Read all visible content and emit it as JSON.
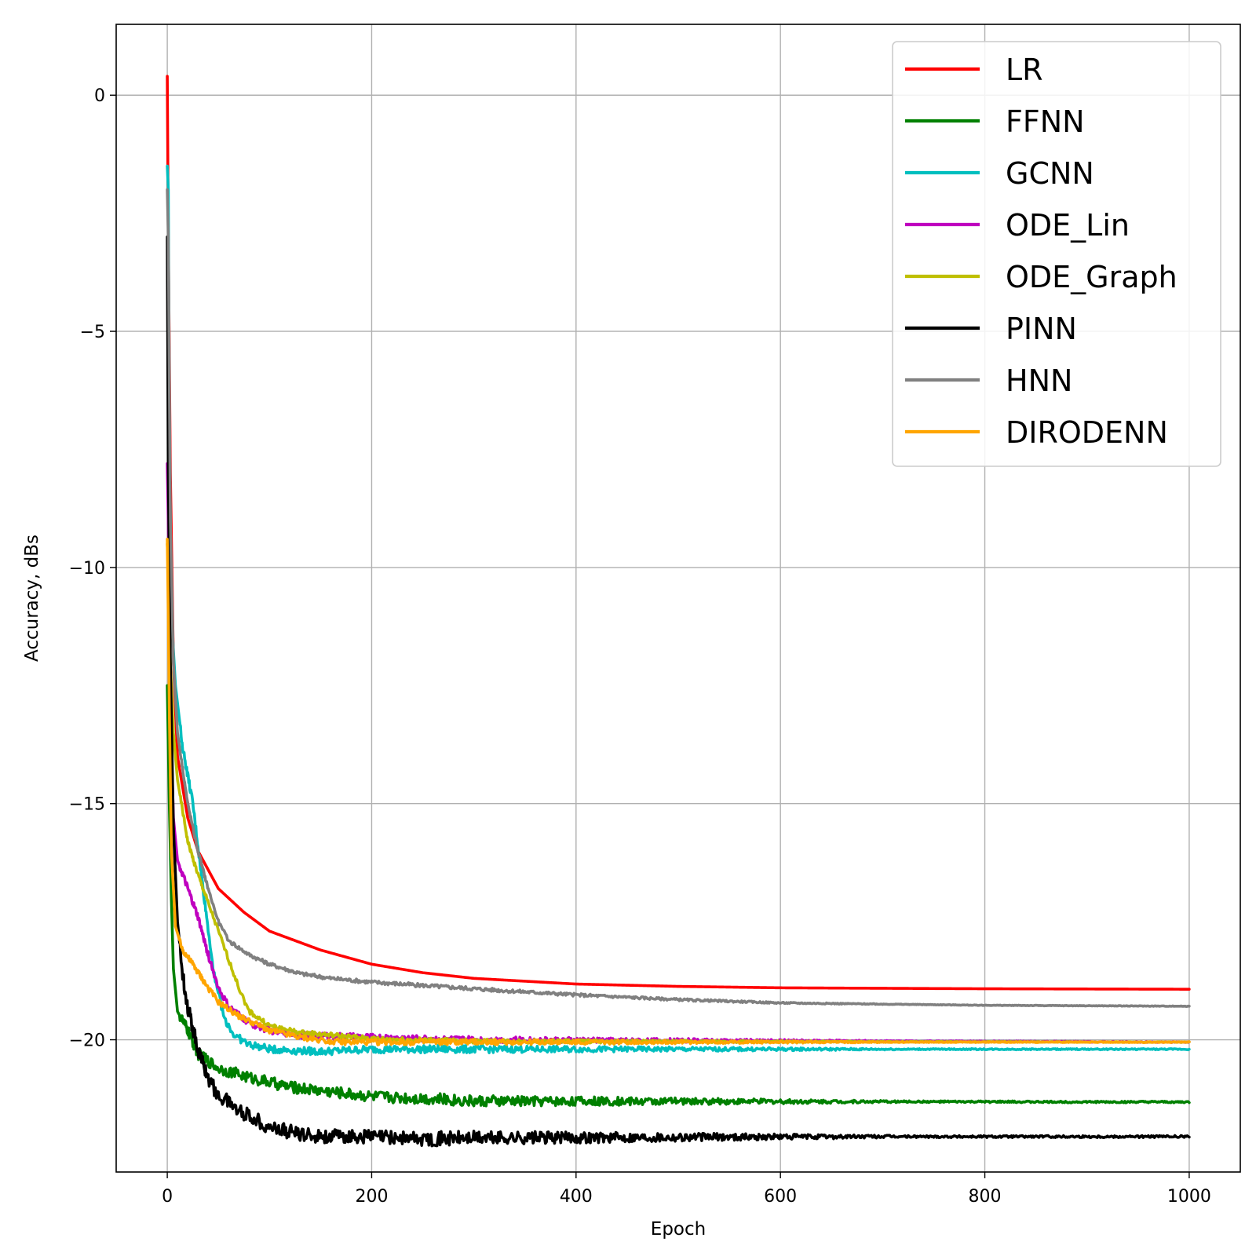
{
  "chart_data": {
    "type": "line",
    "title": "",
    "xlabel": "Epoch",
    "ylabel": "Accuracy, dBs",
    "xlim": [
      -50,
      1050
    ],
    "ylim": [
      -22.8,
      1.5
    ],
    "xticks": [
      0,
      200,
      400,
      600,
      800,
      1000
    ],
    "xtick_labels": [
      "0",
      "200",
      "400",
      "600",
      "800",
      "1000"
    ],
    "yticks": [
      0,
      -5,
      -10,
      -15,
      -20
    ],
    "ytick_labels": [
      "0",
      "−5",
      "−10",
      "−15",
      "−20"
    ],
    "grid": true,
    "legend_position": "top-right",
    "series": [
      {
        "name": "LR",
        "color": "#ff0000",
        "noise": 0,
        "points": [
          [
            0,
            0.4
          ],
          [
            1,
            -3
          ],
          [
            3,
            -8
          ],
          [
            6,
            -12
          ],
          [
            10,
            -14
          ],
          [
            20,
            -15.3
          ],
          [
            30,
            -16
          ],
          [
            50,
            -16.8
          ],
          [
            75,
            -17.3
          ],
          [
            100,
            -17.7
          ],
          [
            150,
            -18.1
          ],
          [
            200,
            -18.4
          ],
          [
            250,
            -18.58
          ],
          [
            300,
            -18.7
          ],
          [
            400,
            -18.82
          ],
          [
            500,
            -18.87
          ],
          [
            600,
            -18.9
          ],
          [
            800,
            -18.92
          ],
          [
            1000,
            -18.93
          ]
        ]
      },
      {
        "name": "FFNN",
        "color": "#008000",
        "noise": 0.12,
        "points": [
          [
            0,
            -12.5
          ],
          [
            2,
            -15
          ],
          [
            4,
            -17
          ],
          [
            6,
            -18.5
          ],
          [
            10,
            -19.4
          ],
          [
            20,
            -19.8
          ],
          [
            30,
            -20.3
          ],
          [
            50,
            -20.6
          ],
          [
            80,
            -20.8
          ],
          [
            120,
            -21
          ],
          [
            160,
            -21.1
          ],
          [
            200,
            -21.2
          ],
          [
            260,
            -21.25
          ],
          [
            300,
            -21.3
          ],
          [
            400,
            -21.3
          ],
          [
            1000,
            -21.32
          ]
        ]
      },
      {
        "name": "GCNN",
        "color": "#00bfbf",
        "noise": 0.08,
        "points": [
          [
            0,
            -1.5
          ],
          [
            1,
            -2
          ],
          [
            2,
            -7
          ],
          [
            4,
            -11
          ],
          [
            8,
            -12.5
          ],
          [
            15,
            -13.8
          ],
          [
            25,
            -15
          ],
          [
            35,
            -16.8
          ],
          [
            45,
            -18.5
          ],
          [
            55,
            -19.5
          ],
          [
            65,
            -19.9
          ],
          [
            80,
            -20.1
          ],
          [
            100,
            -20.2
          ],
          [
            150,
            -20.25
          ],
          [
            200,
            -20.2
          ],
          [
            300,
            -20.2
          ],
          [
            500,
            -20.2
          ],
          [
            1000,
            -20.2
          ]
        ]
      },
      {
        "name": "ODE_Lin",
        "color": "#bf00bf",
        "noise": 0.07,
        "points": [
          [
            0,
            -7.8
          ],
          [
            1,
            -9
          ],
          [
            3,
            -13
          ],
          [
            6,
            -15.3
          ],
          [
            10,
            -16.2
          ],
          [
            20,
            -16.8
          ],
          [
            30,
            -17.4
          ],
          [
            40,
            -18.2
          ],
          [
            50,
            -18.9
          ],
          [
            60,
            -19.3
          ],
          [
            80,
            -19.65
          ],
          [
            100,
            -19.8
          ],
          [
            130,
            -19.9
          ],
          [
            200,
            -19.95
          ],
          [
            300,
            -20
          ],
          [
            1000,
            -20.05
          ]
        ]
      },
      {
        "name": "ODE_Graph",
        "color": "#bfbf00",
        "noise": 0.05,
        "points": [
          [
            0,
            -9.5
          ],
          [
            1,
            -10
          ],
          [
            3,
            -12
          ],
          [
            6,
            -13.5
          ],
          [
            10,
            -14.5
          ],
          [
            20,
            -15.8
          ],
          [
            30,
            -16.5
          ],
          [
            40,
            -17.1
          ],
          [
            50,
            -17.7
          ],
          [
            60,
            -18.3
          ],
          [
            70,
            -18.9
          ],
          [
            80,
            -19.4
          ],
          [
            100,
            -19.7
          ],
          [
            130,
            -19.85
          ],
          [
            160,
            -19.9
          ],
          [
            200,
            -19.98
          ],
          [
            300,
            -20.03
          ],
          [
            1000,
            -20.05
          ]
        ]
      },
      {
        "name": "PINN",
        "color": "#000000",
        "noise": 0.15,
        "points": [
          [
            0,
            -3
          ],
          [
            1,
            -8
          ],
          [
            3,
            -12
          ],
          [
            6,
            -15.5
          ],
          [
            10,
            -17.5
          ],
          [
            15,
            -18.6
          ],
          [
            20,
            -19.3
          ],
          [
            30,
            -20.2
          ],
          [
            40,
            -20.8
          ],
          [
            50,
            -21.2
          ],
          [
            60,
            -21.3
          ],
          [
            70,
            -21.5
          ],
          [
            80,
            -21.6
          ],
          [
            100,
            -21.85
          ],
          [
            130,
            -22
          ],
          [
            160,
            -22.05
          ],
          [
            200,
            -22.05
          ],
          [
            250,
            -22.1
          ],
          [
            300,
            -22.08
          ],
          [
            400,
            -22.07
          ],
          [
            500,
            -22.06
          ],
          [
            700,
            -22.05
          ],
          [
            1000,
            -22.05
          ]
        ]
      },
      {
        "name": "HNN",
        "color": "#808080",
        "noise": 0.04,
        "points": [
          [
            0,
            -2
          ],
          [
            1,
            -3
          ],
          [
            3,
            -9
          ],
          [
            6,
            -12
          ],
          [
            10,
            -13.5
          ],
          [
            20,
            -15
          ],
          [
            30,
            -16
          ],
          [
            40,
            -16.8
          ],
          [
            50,
            -17.5
          ],
          [
            60,
            -17.9
          ],
          [
            80,
            -18.2
          ],
          [
            100,
            -18.4
          ],
          [
            130,
            -18.6
          ],
          [
            160,
            -18.7
          ],
          [
            200,
            -18.78
          ],
          [
            250,
            -18.85
          ],
          [
            300,
            -18.92
          ],
          [
            400,
            -19.05
          ],
          [
            500,
            -19.15
          ],
          [
            600,
            -19.22
          ],
          [
            800,
            -19.27
          ],
          [
            1000,
            -19.29
          ]
        ]
      },
      {
        "name": "DIRODENN",
        "color": "#ffa500",
        "noise": 0.06,
        "points": [
          [
            0,
            -9.4
          ],
          [
            1,
            -11
          ],
          [
            2,
            -13
          ],
          [
            4,
            -16
          ],
          [
            8,
            -17.6
          ],
          [
            15,
            -18.1
          ],
          [
            25,
            -18.4
          ],
          [
            40,
            -18.9
          ],
          [
            50,
            -19.2
          ],
          [
            70,
            -19.5
          ],
          [
            100,
            -19.8
          ],
          [
            130,
            -19.95
          ],
          [
            170,
            -20.05
          ],
          [
            200,
            -20.05
          ],
          [
            300,
            -20.05
          ],
          [
            1000,
            -20.05
          ]
        ]
      }
    ]
  }
}
